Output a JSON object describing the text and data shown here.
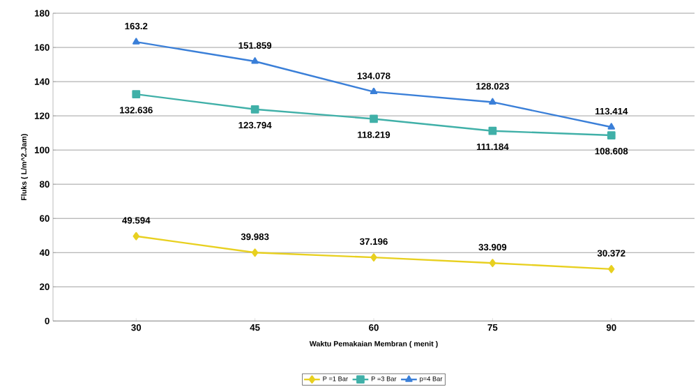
{
  "chart_data": {
    "type": "line",
    "xlabel": "Waktu Pemakaian Membran ( menit )",
    "ylabel": "Fluks ( L/m^2.Jam)",
    "categories": [
      "30",
      "45",
      "60",
      "75",
      "90"
    ],
    "series": [
      {
        "name": "P =1 Bar",
        "color": "#e8d020",
        "marker": "diamond",
        "values": [
          49.594,
          39.983,
          37.196,
          33.909,
          30.372
        ]
      },
      {
        "name": "P =3 Bar",
        "color": "#40b0a8",
        "marker": "square",
        "values": [
          132.636,
          123.794,
          118.219,
          111.184,
          108.608
        ]
      },
      {
        "name": "p=4 Bar",
        "color": "#3a7fd8",
        "marker": "triangle",
        "values": [
          163.2,
          151.859,
          134.078,
          128.023,
          113.414
        ]
      }
    ],
    "ylim": [
      0,
      180
    ],
    "yticks": [
      0,
      20,
      40,
      60,
      80,
      100,
      120,
      140,
      160,
      180
    ],
    "grid": "y",
    "legend": "bottom",
    "data_labels": true,
    "line_style": "solid"
  }
}
